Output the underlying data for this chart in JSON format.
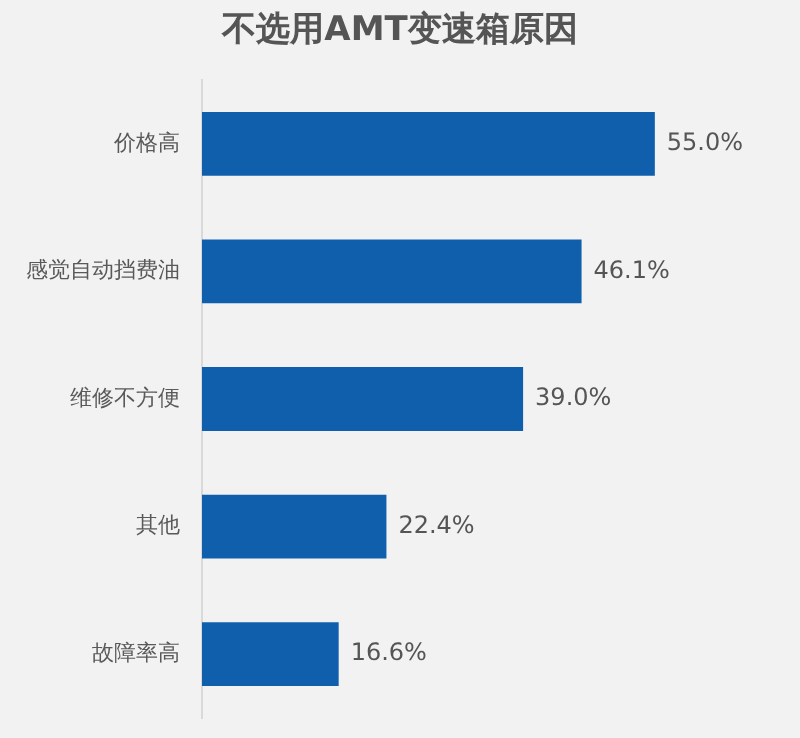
{
  "chart_data": {
    "type": "bar",
    "orientation": "horizontal",
    "title": "不选用AMT变速箱原因",
    "categories": [
      "价格高",
      "感觉自动挡费油",
      "维修不方便",
      "其他",
      "故障率高"
    ],
    "values": [
      55.0,
      46.1,
      39.0,
      22.4,
      16.6
    ],
    "value_labels": [
      "55.0%",
      "46.1%",
      "39.0%",
      "22.4%",
      "16.6%"
    ],
    "color": "#0f5fad"
  }
}
